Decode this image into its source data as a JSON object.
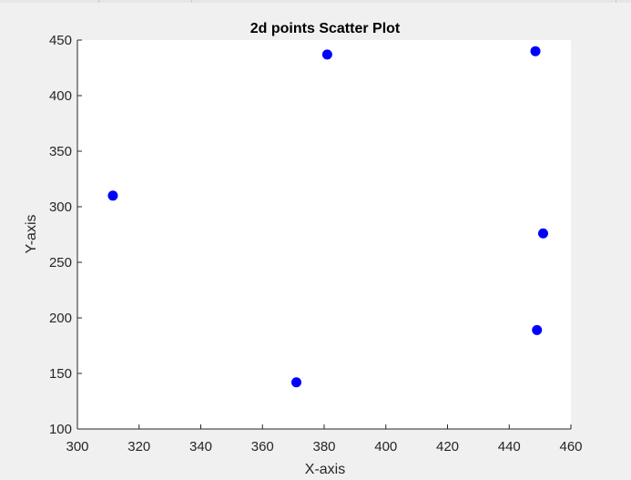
{
  "chart_data": {
    "type": "scatter",
    "title": "2d points Scatter Plot",
    "xlabel": "X-axis",
    "ylabel": "Y-axis",
    "xlim": [
      300,
      460
    ],
    "ylim": [
      100,
      450
    ],
    "xticks": [
      "300",
      "320",
      "340",
      "360",
      "380",
      "400",
      "420",
      "440",
      "460"
    ],
    "yticks": [
      "100",
      "150",
      "200",
      "250",
      "300",
      "350",
      "400",
      "450"
    ],
    "grid": false,
    "marker_color": "#0000ff",
    "points": [
      {
        "x": 311.5,
        "y": 310
      },
      {
        "x": 371,
        "y": 142
      },
      {
        "x": 381,
        "y": 437
      },
      {
        "x": 448.5,
        "y": 440
      },
      {
        "x": 451,
        "y": 276
      },
      {
        "x": 449,
        "y": 189
      }
    ]
  }
}
